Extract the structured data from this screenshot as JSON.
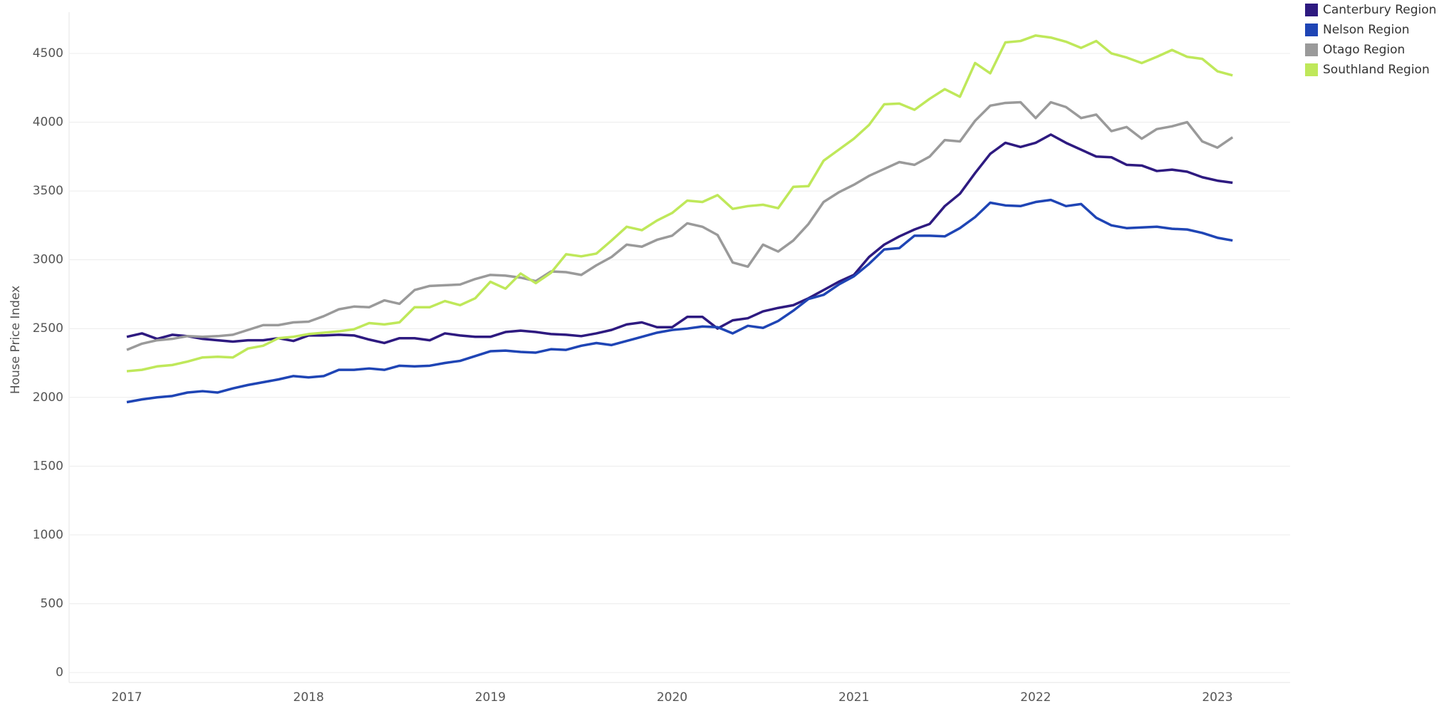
{
  "chart_data": {
    "type": "line",
    "y_label": "House Price Index",
    "categories": [
      "2017",
      null,
      null,
      null,
      null,
      null,
      null,
      null,
      null,
      null,
      null,
      null,
      "2018",
      null,
      null,
      null,
      null,
      null,
      null,
      null,
      null,
      null,
      null,
      null,
      "2019",
      null,
      null,
      null,
      null,
      null,
      null,
      null,
      null,
      null,
      null,
      null,
      "2020",
      null,
      null,
      null,
      null,
      null,
      null,
      null,
      null,
      null,
      null,
      null,
      "2021",
      null,
      null,
      null,
      null,
      null,
      null,
      null,
      null,
      null,
      null,
      null,
      "2022",
      null,
      null,
      null,
      null,
      null,
      null,
      null,
      null,
      null,
      null,
      null,
      "2023",
      null
    ],
    "series": [
      {
        "name": "Canterbury Region",
        "color": "#2e1a80",
        "values": [
          2440,
          2465,
          2425,
          2455,
          2445,
          2425,
          2415,
          2405,
          2415,
          2415,
          2430,
          2410,
          2450,
          2450,
          2455,
          2450,
          2420,
          2395,
          2430,
          2430,
          2415,
          2465,
          2450,
          2440,
          2440,
          2475,
          2485,
          2475,
          2460,
          2455,
          2445,
          2465,
          2490,
          2530,
          2545,
          2510,
          2510,
          2585,
          2585,
          2500,
          2560,
          2575,
          2625,
          2650,
          2670,
          2720,
          2780,
          2840,
          2890,
          3020,
          3110,
          3170,
          3220,
          3260,
          3390,
          3480,
          3630,
          3770,
          3850,
          3820,
          3850,
          3910,
          3850,
          3800,
          3750,
          3745,
          3690,
          3685,
          3645,
          3655,
          3640,
          3600,
          3575,
          3560
        ]
      },
      {
        "name": "Nelson Region",
        "color": "#1f45b5",
        "values": [
          1965,
          1985,
          2000,
          2010,
          2035,
          2045,
          2035,
          2065,
          2090,
          2110,
          2130,
          2155,
          2145,
          2155,
          2200,
          2200,
          2210,
          2200,
          2230,
          2225,
          2230,
          2250,
          2265,
          2300,
          2335,
          2340,
          2330,
          2325,
          2350,
          2345,
          2375,
          2395,
          2380,
          2410,
          2440,
          2470,
          2490,
          2500,
          2515,
          2510,
          2465,
          2520,
          2505,
          2555,
          2630,
          2715,
          2745,
          2820,
          2880,
          2970,
          3075,
          3085,
          3175,
          3175,
          3170,
          3230,
          3310,
          3415,
          3395,
          3390,
          3420,
          3435,
          3390,
          3405,
          3305,
          3250,
          3230,
          3235,
          3240,
          3225,
          3220,
          3195,
          3160,
          3140
        ]
      },
      {
        "name": "Otago Region",
        "color": "#9a9a9a",
        "values": [
          2345,
          2390,
          2415,
          2425,
          2445,
          2440,
          2445,
          2455,
          2490,
          2525,
          2525,
          2545,
          2550,
          2590,
          2640,
          2660,
          2655,
          2705,
          2680,
          2780,
          2810,
          2815,
          2820,
          2860,
          2890,
          2885,
          2870,
          2845,
          2915,
          2910,
          2890,
          2960,
          3020,
          3110,
          3095,
          3145,
          3175,
          3265,
          3240,
          3180,
          2980,
          2950,
          3110,
          3060,
          3140,
          3260,
          3420,
          3490,
          3545,
          3610,
          3660,
          3710,
          3690,
          3750,
          3870,
          3860,
          4010,
          4120,
          4140,
          4145,
          4030,
          4145,
          4110,
          4030,
          4055,
          3935,
          3965,
          3880,
          3950,
          3970,
          4000,
          3860,
          3815,
          3890
        ]
      },
      {
        "name": "Southland Region",
        "color": "#bfe85a",
        "values": [
          2190,
          2200,
          2225,
          2235,
          2260,
          2290,
          2295,
          2290,
          2355,
          2375,
          2430,
          2440,
          2460,
          2470,
          2480,
          2495,
          2540,
          2530,
          2545,
          2655,
          2655,
          2700,
          2670,
          2720,
          2840,
          2790,
          2900,
          2830,
          2905,
          3040,
          3025,
          3045,
          3140,
          3240,
          3215,
          3285,
          3340,
          3430,
          3420,
          3470,
          3370,
          3390,
          3400,
          3375,
          3530,
          3535,
          3720,
          3800,
          3880,
          3980,
          4130,
          4135,
          4090,
          4170,
          4240,
          4185,
          4430,
          4355,
          4580,
          4590,
          4630,
          4615,
          4585,
          4540,
          4590,
          4500,
          4470,
          4430,
          4475,
          4525,
          4475,
          4460,
          4370,
          4340
        ]
      }
    ],
    "ylim": [
      0,
      4800
    ],
    "yticks": [
      0,
      500,
      1000,
      1500,
      2000,
      2500,
      3000,
      3500,
      4000,
      4500
    ],
    "grid": true,
    "legend": "top-right"
  }
}
